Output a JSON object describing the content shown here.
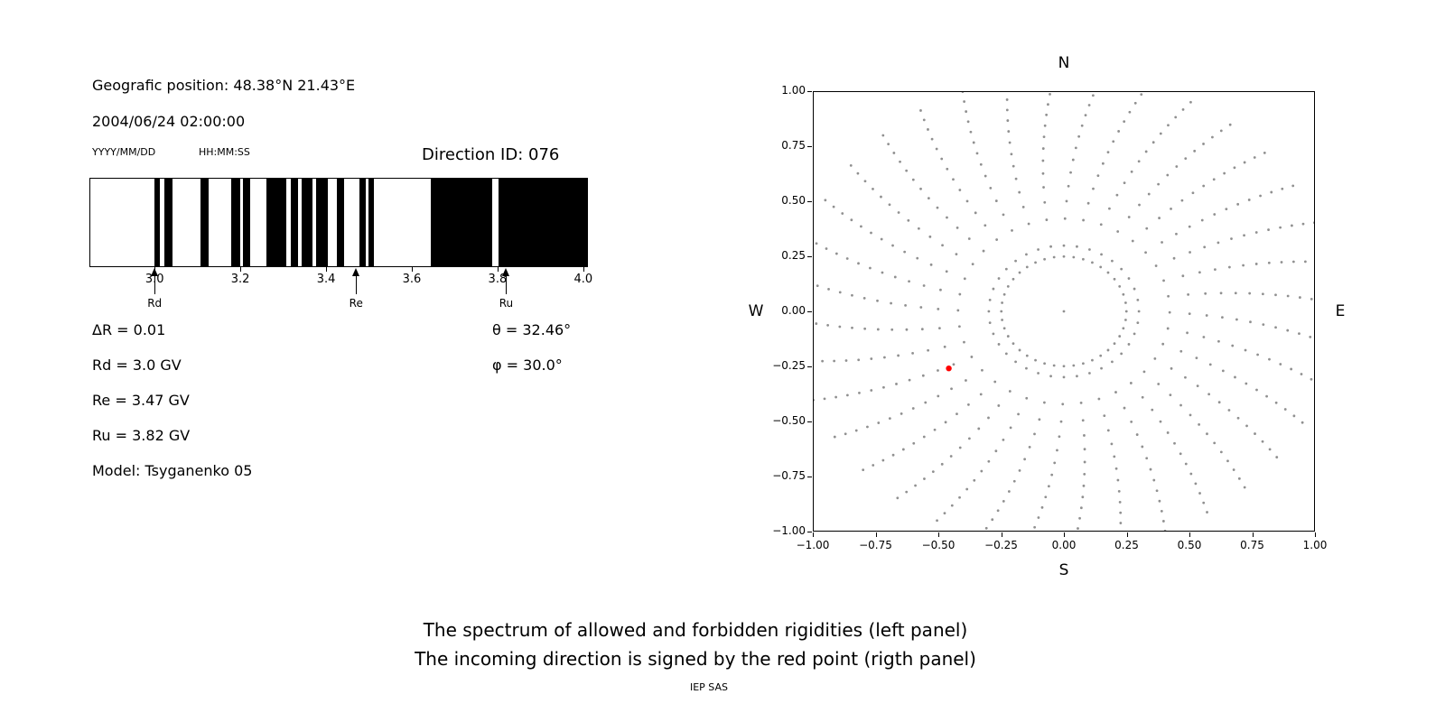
{
  "header": {
    "geo_position": "Geografic position: 48.38°N 21.43°E",
    "datetime": "2004/06/24 02:00:00",
    "date_format": "YYYY/MM/DD",
    "time_format": "HH:MM:SS",
    "direction_id": "Direction ID: 076"
  },
  "params": {
    "delta_r": "ΔR = 0.01",
    "rd": "Rd = 3.0 GV",
    "re": "Re = 3.47 GV",
    "ru": "Ru = 3.82 GV",
    "model": "Model: Tsyganenko 05",
    "theta": "θ = 32.46°",
    "phi": "φ = 30.0°"
  },
  "captions": {
    "line1": "The spectrum of allowed and forbidden rigidities (left panel)",
    "line2": "The incoming direction is signed by the red point (rigth panel)",
    "credit": "IEP SAS"
  },
  "chart_data": [
    {
      "type": "bar",
      "title": "The spectrum of allowed and forbidden rigidities",
      "note": "Barcode spectrum: black bands = forbidden rigidities, white = allowed; x axis in GV",
      "xlim": [
        2.85,
        4.013
      ],
      "xtick_values": [
        3.0,
        3.2,
        3.4,
        3.6,
        3.8,
        4.0
      ],
      "xticks": [
        "3.0",
        "3.2",
        "3.4",
        "3.6",
        "3.8",
        "4.0"
      ],
      "delta_R_GV": 0.01,
      "Rd_GV": 3.0,
      "Re_GV": 3.47,
      "Ru_GV": 3.82,
      "theta_deg": 32.46,
      "phi_deg": 30.0,
      "model": "Tsyganenko 05",
      "markers": [
        {
          "label": "Rd",
          "value": 3.0
        },
        {
          "label": "Re",
          "value": 3.47
        },
        {
          "label": "Ru",
          "value": 3.82
        }
      ],
      "forbidden_bands_GV": [
        [
          3.0,
          3.013
        ],
        [
          3.024,
          3.042
        ],
        [
          3.109,
          3.128
        ],
        [
          3.18,
          3.2
        ],
        [
          3.208,
          3.224
        ],
        [
          3.262,
          3.309
        ],
        [
          3.32,
          3.337
        ],
        [
          3.344,
          3.371
        ],
        [
          3.379,
          3.406
        ],
        [
          3.428,
          3.444
        ],
        [
          3.481,
          3.495
        ],
        [
          3.501,
          3.513
        ],
        [
          3.648,
          3.792
        ],
        [
          3.806,
          4.013
        ]
      ]
    },
    {
      "type": "scatter",
      "title": "The incoming direction is signed by the red point",
      "compass": {
        "top": "N",
        "bottom": "S",
        "left": "W",
        "right": "E"
      },
      "xlim": [
        -1,
        1
      ],
      "ylim": [
        -1,
        1
      ],
      "xticks": [
        "−1.00",
        "−0.75",
        "−0.50",
        "−0.25",
        "0.00",
        "0.25",
        "0.50",
        "0.75",
        "1.00"
      ],
      "yticks": [
        "1.00",
        "0.75",
        "0.50",
        "0.25",
        "0.00",
        "−0.25",
        "−0.50",
        "−0.75",
        "−1.00"
      ],
      "dot_color": "#909090",
      "red_point": {
        "x": -0.46,
        "y": -0.26,
        "color": "#ff0000"
      },
      "pattern": {
        "spokes": 36,
        "spoke_angle_step_deg": 10,
        "spoke_r_start": 0.3,
        "spoke_r_end": 1.08,
        "dots_per_spoke": 14,
        "density_power": 0.72,
        "curvature_deg": -8,
        "inner_ring_radius": 0.25,
        "inner_ring_dots": 40,
        "center_dot": true
      }
    }
  ]
}
